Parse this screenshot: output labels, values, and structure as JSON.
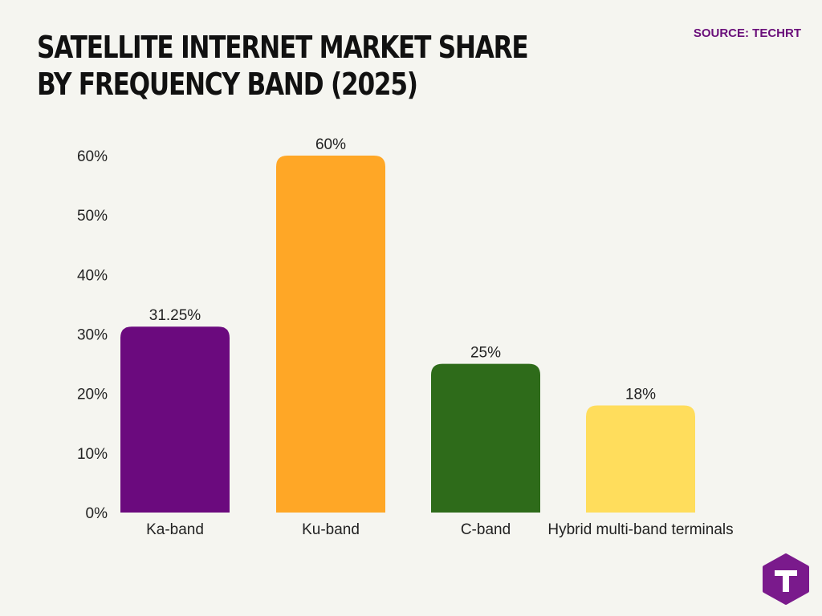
{
  "header": {
    "title": "SATELLITE INTERNET MARKET SHARE BY FREQUENCY BAND (2025)",
    "source": "SOURCE: TECHRT"
  },
  "logo": {
    "icon": "techrt-logo-icon",
    "letter": "T",
    "color": "#7a1a8c"
  },
  "chart_data": {
    "type": "bar",
    "title": "SATELLITE INTERNET MARKET SHARE BY FREQUENCY BAND (2025)",
    "categories": [
      "Ka-band",
      "Ku-band",
      "C-band",
      "Hybrid multi-band terminals"
    ],
    "values": [
      31.25,
      60,
      25,
      18
    ],
    "value_labels": [
      "31.25%",
      "60%",
      "25%",
      "18%"
    ],
    "colors": [
      "#6b0a7e",
      "#ffa726",
      "#2e6b1a",
      "#ffdd5c"
    ],
    "yticks": [
      0,
      10,
      20,
      30,
      40,
      50,
      60
    ],
    "ytick_labels": [
      "0%",
      "10%",
      "20%",
      "30%",
      "40%",
      "50%",
      "60%"
    ],
    "ylim": [
      0,
      60
    ],
    "xlabel": "",
    "ylabel": "",
    "grid": false,
    "legend": "none"
  }
}
